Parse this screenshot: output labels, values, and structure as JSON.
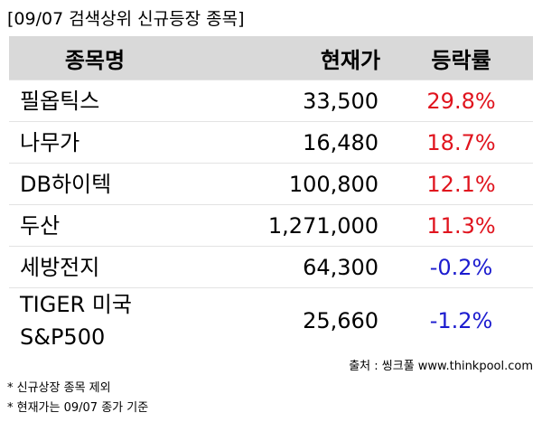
{
  "title": "[09/07 검색상위 신규등장 종목]",
  "table": {
    "header": [
      "종목명",
      "현재가",
      "등락률"
    ],
    "rows": [
      [
        "필옵틱스",
        "33,500",
        "29.8%"
      ],
      [
        "나무가",
        "16,480",
        "18.7%"
      ],
      [
        "DB하이텍",
        "100,800",
        "12.1%"
      ],
      [
        "두산",
        "1,271,000",
        "11.3%"
      ],
      [
        "세방전지",
        "64,300",
        "-0.2%"
      ],
      [
        "TIGER 미국 S&P500",
        "25,660",
        "-1.2%"
      ]
    ]
  },
  "source": "출처 : 씽크풀 www.thinkpool.com",
  "notes": [
    "* 신규상장 종목 제외",
    "* 현재가는 09/07 종가 기준"
  ]
}
